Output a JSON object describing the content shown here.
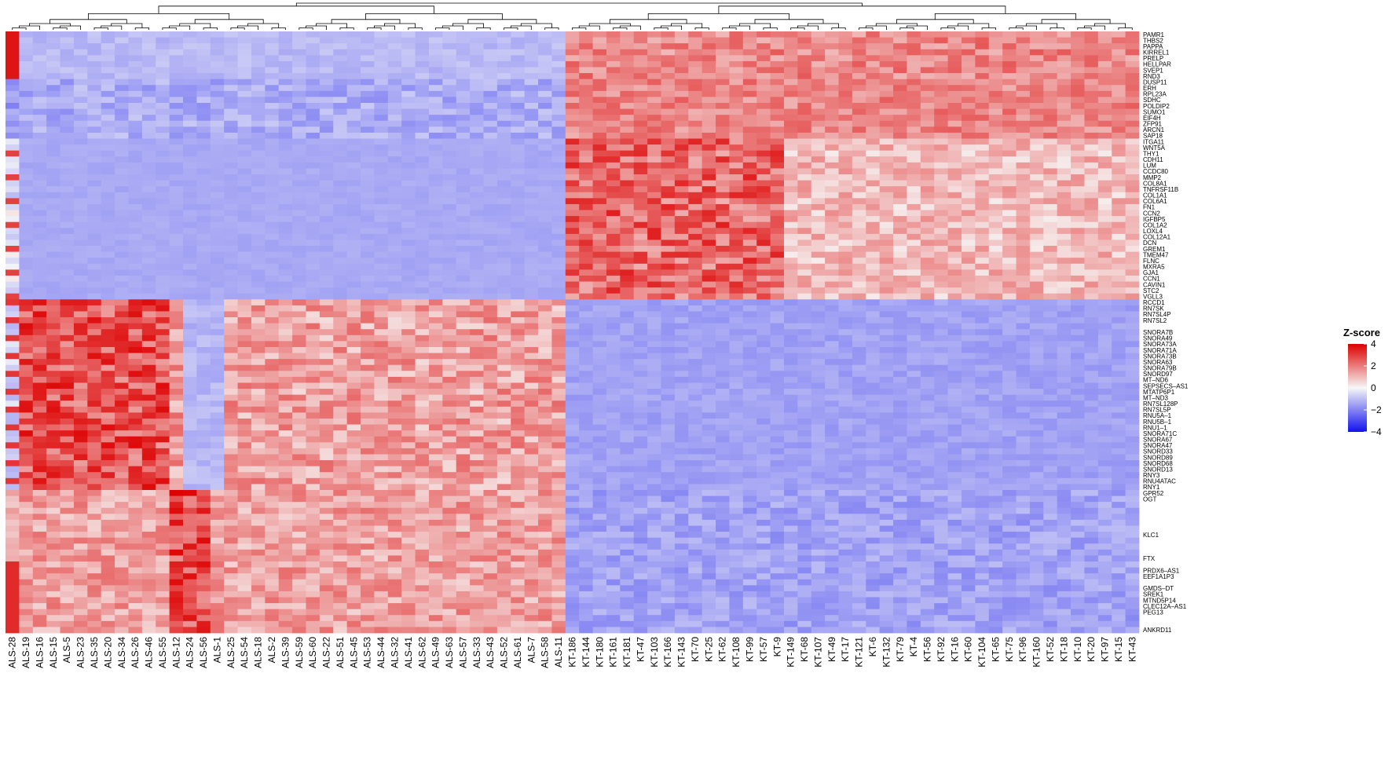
{
  "chart_data": {
    "type": "heatmap",
    "title": "",
    "legend": {
      "title": "Z-score",
      "ticks": [
        4,
        2,
        0,
        -2,
        -4
      ],
      "range": [
        -4,
        4
      ],
      "colors": {
        "low": "#1111ee",
        "mid": "#f7f7f7",
        "high": "#dd0000"
      },
      "placement": "right"
    },
    "columns": [
      "ALS-28",
      "ALS-19",
      "ALS-16",
      "ALS-15",
      "ALS-5",
      "ALS-23",
      "ALS-35",
      "ALS-20",
      "ALS-34",
      "ALS-26",
      "ALS-46",
      "ALS-55",
      "ALS-12",
      "ALS-24",
      "ALS-56",
      "ALS-1",
      "ALS-25",
      "ALS-54",
      "ALS-18",
      "ALS-2",
      "ALS-39",
      "ALS-59",
      "ALS-60",
      "ALS-22",
      "ALS-51",
      "ALS-45",
      "ALS-53",
      "ALS-44",
      "ALS-32",
      "ALS-41",
      "ALS-62",
      "ALS-49",
      "ALS-63",
      "ALS-57",
      "ALS-33",
      "ALS-43",
      "ALS-52",
      "ALS-61",
      "ALS-7",
      "ALS-58",
      "ALS-11",
      "KT-186",
      "KT-144",
      "KT-180",
      "KT-161",
      "KT-181",
      "KT-47",
      "KT-103",
      "KT-166",
      "KT-143",
      "KT-70",
      "KT-25",
      "KT-62",
      "KT-108",
      "KT-99",
      "KT-57",
      "KT-9",
      "KT-149",
      "KT-68",
      "KT-107",
      "KT-49",
      "KT-17",
      "KT-121",
      "KT-6",
      "KT-132",
      "KT-79",
      "KT-4",
      "KT-56",
      "KT-92",
      "KT-16",
      "KT-60",
      "KT-104",
      "KT-65",
      "KT-75",
      "KT-96",
      "KT-160",
      "KT-52",
      "KT-18",
      "KT-10",
      "KT-20",
      "KT-97",
      "KT-15",
      "KT-43"
    ],
    "row_count": 101,
    "row_labels": [
      {
        "row": 0,
        "label": "PAMR1"
      },
      {
        "row": 1,
        "label": "THBS2"
      },
      {
        "row": 2,
        "label": "PAPPA"
      },
      {
        "row": 3,
        "label": "KIRREL1"
      },
      {
        "row": 4,
        "label": "PRELP"
      },
      {
        "row": 5,
        "label": "HELLPAR"
      },
      {
        "row": 6,
        "label": "SVEP1"
      },
      {
        "row": 7,
        "label": "RND3"
      },
      {
        "row": 8,
        "label": "DUSP11"
      },
      {
        "row": 9,
        "label": "ERH"
      },
      {
        "row": 10,
        "label": "RPL23A"
      },
      {
        "row": 11,
        "label": "SDHC"
      },
      {
        "row": 12,
        "label": "POLDIP2"
      },
      {
        "row": 13,
        "label": "SUMO1"
      },
      {
        "row": 14,
        "label": "EIF4H"
      },
      {
        "row": 15,
        "label": "ZFP91"
      },
      {
        "row": 16,
        "label": "ARCN1"
      },
      {
        "row": 17,
        "label": "SAP18"
      },
      {
        "row": 18,
        "label": "ITGA11"
      },
      {
        "row": 19,
        "label": "WNT5A"
      },
      {
        "row": 20,
        "label": "THY1"
      },
      {
        "row": 21,
        "label": "CDH11"
      },
      {
        "row": 22,
        "label": "LUM"
      },
      {
        "row": 23,
        "label": "CCDC80"
      },
      {
        "row": 24,
        "label": "MMP2"
      },
      {
        "row": 25,
        "label": "COL8A1"
      },
      {
        "row": 26,
        "label": "TNFRSF11B"
      },
      {
        "row": 27,
        "label": "COL1A1"
      },
      {
        "row": 28,
        "label": "COL6A1"
      },
      {
        "row": 29,
        "label": "FN1"
      },
      {
        "row": 30,
        "label": "CCN2"
      },
      {
        "row": 31,
        "label": "IGFBP5"
      },
      {
        "row": 32,
        "label": "COL1A2"
      },
      {
        "row": 33,
        "label": "LOXL4"
      },
      {
        "row": 34,
        "label": "COL12A1"
      },
      {
        "row": 35,
        "label": "DCN"
      },
      {
        "row": 36,
        "label": "GREM1"
      },
      {
        "row": 37,
        "label": "TMEM47"
      },
      {
        "row": 38,
        "label": "FLNC"
      },
      {
        "row": 39,
        "label": "MXRA5"
      },
      {
        "row": 40,
        "label": "GJA1"
      },
      {
        "row": 41,
        "label": "CCN1"
      },
      {
        "row": 42,
        "label": "CAVIN1"
      },
      {
        "row": 43,
        "label": "STC2"
      },
      {
        "row": 44,
        "label": "VGLL3"
      },
      {
        "row": 45,
        "label": "RCCD1"
      },
      {
        "row": 46,
        "label": "RN7SK"
      },
      {
        "row": 47,
        "label": "RN7SL4P"
      },
      {
        "row": 48,
        "label": "RN7SL2"
      },
      {
        "row": 50,
        "label": "SNORA7B"
      },
      {
        "row": 51,
        "label": "SNORA49"
      },
      {
        "row": 52,
        "label": "SNORA73A"
      },
      {
        "row": 53,
        "label": "SNORA71A"
      },
      {
        "row": 54,
        "label": "SNORA73B"
      },
      {
        "row": 55,
        "label": "SNORA63"
      },
      {
        "row": 56,
        "label": "SNORA79B"
      },
      {
        "row": 57,
        "label": "SNORD97"
      },
      {
        "row": 58,
        "label": "MT–ND6"
      },
      {
        "row": 59,
        "label": "SEPSECS–AS1"
      },
      {
        "row": 60,
        "label": "MTATP6P1"
      },
      {
        "row": 61,
        "label": "MT–ND3"
      },
      {
        "row": 62,
        "label": "RN7SL128P"
      },
      {
        "row": 63,
        "label": "RN7SL5P"
      },
      {
        "row": 64,
        "label": "RNU5A–1"
      },
      {
        "row": 65,
        "label": "RNU5B–1"
      },
      {
        "row": 66,
        "label": "RNU1–1"
      },
      {
        "row": 67,
        "label": "SNORA71C"
      },
      {
        "row": 68,
        "label": "SNORA67"
      },
      {
        "row": 69,
        "label": "SNORA47"
      },
      {
        "row": 70,
        "label": "SNORD33"
      },
      {
        "row": 71,
        "label": "SNORD89"
      },
      {
        "row": 72,
        "label": "SNORD68"
      },
      {
        "row": 73,
        "label": "SNORD13"
      },
      {
        "row": 74,
        "label": "RNY3"
      },
      {
        "row": 75,
        "label": "RNU4ATAC"
      },
      {
        "row": 76,
        "label": "RNY1"
      },
      {
        "row": 77,
        "label": "GPR52"
      },
      {
        "row": 78,
        "label": "OGT"
      },
      {
        "row": 84,
        "label": "KLC1"
      },
      {
        "row": 88,
        "label": "FTX"
      },
      {
        "row": 90,
        "label": "PRDX6–AS1"
      },
      {
        "row": 91,
        "label": "EEF1A1P3"
      },
      {
        "row": 93,
        "label": "GMDS–DT"
      },
      {
        "row": 94,
        "label": "SREK1"
      },
      {
        "row": 95,
        "label": "MTND5P14"
      },
      {
        "row": 96,
        "label": "CLEC12A–AS1"
      },
      {
        "row": 97,
        "label": "PEG13"
      },
      {
        "row": 100,
        "label": "ANKRD11"
      }
    ],
    "row_blocks": [
      {
        "rows": [
          0,
          7
        ],
        "pattern": "ALS-28 high; other ALS low; KT high"
      },
      {
        "rows": [
          8,
          17
        ],
        "pattern": "ALS low; KT high"
      },
      {
        "rows": [
          18,
          44
        ],
        "pattern": "ALS low; KT-186 to KT-9 very high, remaining KT moderately high"
      },
      {
        "rows": [
          45,
          76
        ],
        "pattern": "ALS-19 to ALS-12 very high, ALS-24 to ALS-1 low, remaining ALS high; KT low"
      },
      {
        "rows": [
          77,
          100
        ],
        "pattern": "ALS high (ALS-12 to ALS-56 strongest); KT low"
      }
    ],
    "column_dendrogram": true
  }
}
